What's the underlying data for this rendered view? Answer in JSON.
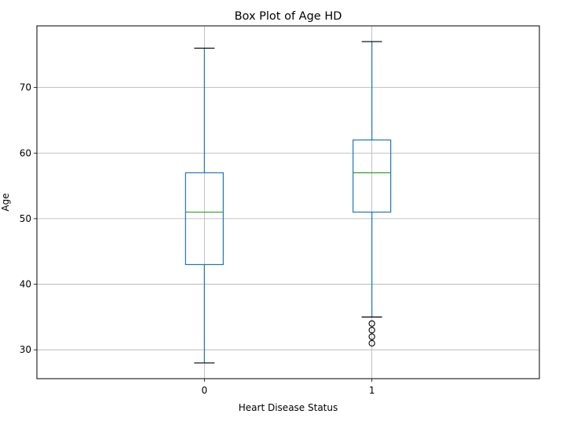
{
  "chart_data": {
    "type": "box",
    "title": "Box Plot of Age HD",
    "xlabel": "Heart Disease Status",
    "ylabel": "Age",
    "categories": [
      "0",
      "1"
    ],
    "ylim": [
      25.6,
      79.4
    ],
    "yticks": [
      30,
      40,
      50,
      60,
      70
    ],
    "grid": true,
    "boxes": [
      {
        "category": "0",
        "whisker_low": 28,
        "q1": 43,
        "median": 51,
        "q3": 57,
        "whisker_high": 76,
        "outliers": []
      },
      {
        "category": "1",
        "whisker_low": 35,
        "q1": 51,
        "median": 57,
        "q3": 62,
        "whisker_high": 77,
        "outliers": [
          34,
          33,
          32,
          31
        ]
      }
    ],
    "colors": {
      "box": "#1f77b4",
      "median": "#2ca02c",
      "whisker_cap": "#000000",
      "grid": "#b0b0b0",
      "outlier": "#000000"
    }
  }
}
